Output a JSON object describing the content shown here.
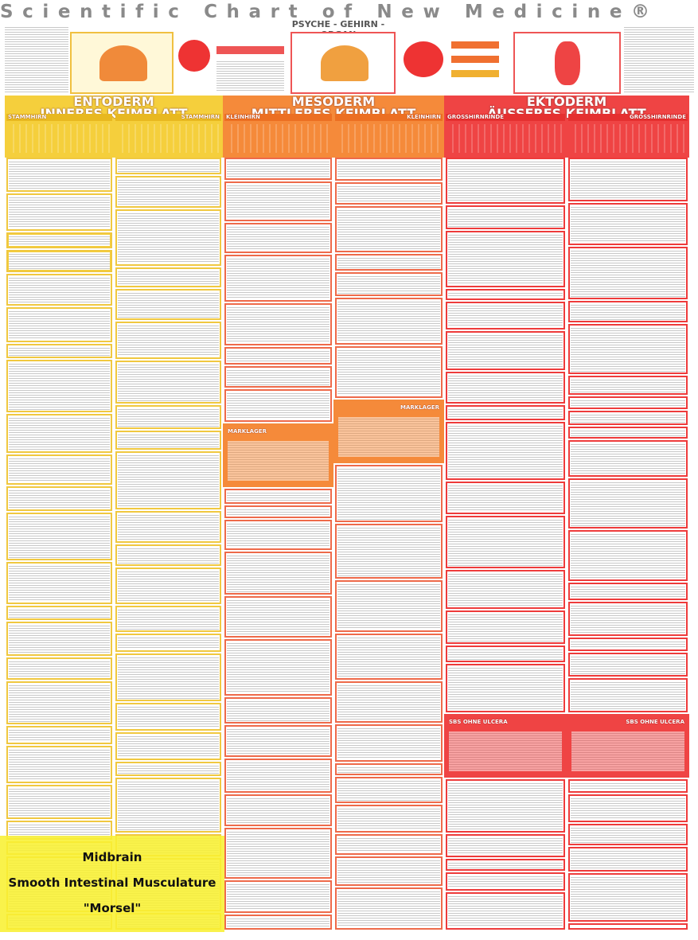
{
  "title": "Scientific Chart of New Medicine®",
  "header": {
    "center_title": "PSYCHE - GEHIRN - ORGAN"
  },
  "columns": [
    {
      "name": "ENTODERM",
      "subtitle": "INNERES KEIMBLATT",
      "sections": [
        "STAMMHIRN",
        "STAMMHIRN"
      ]
    },
    {
      "name": "MESODERM",
      "subtitle": "MITTLERES KEIMBLATT",
      "sections": [
        "KLEINHIRN",
        "KLEINHIRN"
      ],
      "middle": [
        "MARKLAGER",
        "MARKLAGER"
      ]
    },
    {
      "name": "EKTODERM",
      "subtitle": "ÄUSSERES KEIMBLATT",
      "sections": [
        "GROSSHIRNRINDE",
        "GROSSHIRNRINDE"
      ],
      "lower": [
        "SBS OHNE ULCERA",
        "SBS OHNE ULCERA"
      ]
    }
  ],
  "highlight": {
    "lines": [
      "Midbrain",
      "Smooth Intestinal Musculature",
      "\"Morsel\""
    ]
  }
}
